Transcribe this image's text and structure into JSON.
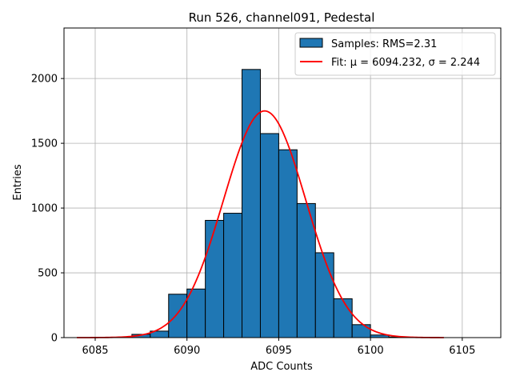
{
  "chart_data": {
    "type": "bar",
    "title": "Run 526, channel091, Pedestal",
    "xlabel": "ADC Counts",
    "ylabel": "Entries",
    "xlim": [
      6083.3,
      6107.1
    ],
    "ylim": [
      0,
      2390
    ],
    "xticks": [
      6085,
      6090,
      6095,
      6100,
      6105
    ],
    "yticks": [
      0,
      500,
      1000,
      1500,
      2000
    ],
    "grid": true,
    "legend_position": "top-right",
    "bar_color": "#1f77b4",
    "fit_color": "#ff0000",
    "histogram": {
      "name": "Samples: RMS=2.31",
      "bin_width": 1,
      "bin_starts": [
        6087,
        6088,
        6089,
        6090,
        6091,
        6092,
        6093,
        6094,
        6095,
        6096,
        6097,
        6098,
        6099,
        6100,
        6101
      ],
      "values": [
        25,
        50,
        335,
        375,
        905,
        960,
        2070,
        1575,
        1450,
        1035,
        655,
        300,
        100,
        20,
        5
      ]
    },
    "fit": {
      "name": "Fit: μ = 6094.232, σ = 2.244",
      "mu": 6094.232,
      "sigma": 2.244,
      "amplitude": 1750,
      "x_range": [
        6084,
        6104
      ]
    }
  }
}
